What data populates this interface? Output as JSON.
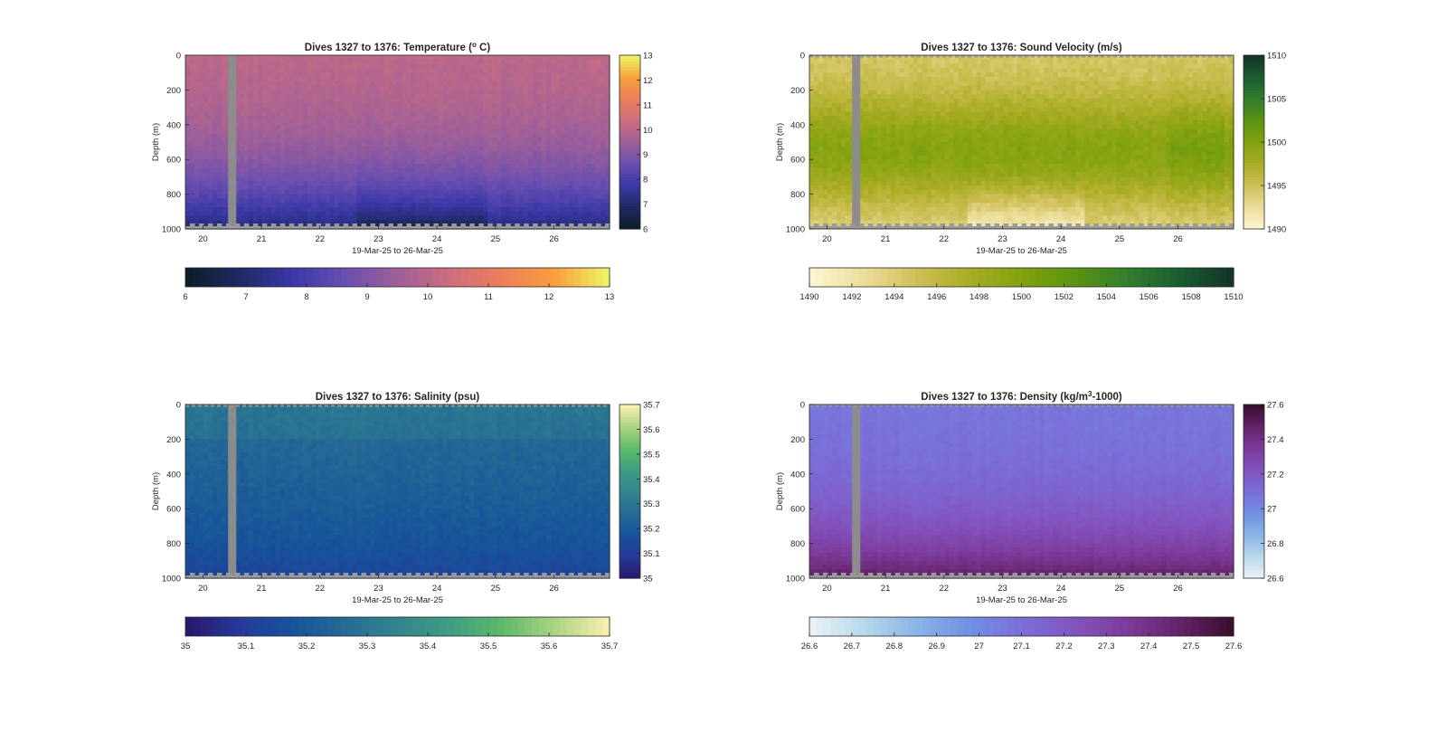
{
  "figure": {
    "background": "#ffffff",
    "gap_color": "#8c8c8c",
    "bottom_gray": "#9a9a9a"
  },
  "chart_data": [
    {
      "type": "heatmap",
      "title_prefix": "Dives 1327 to 1376: Temperature (",
      "title_sup": "o",
      "title_suffix": " C)",
      "xlabel": "19-Mar-25 to 26-Mar-25",
      "ylabel": "Depth (m)",
      "x_ticks": [
        "20",
        "21",
        "22",
        "23",
        "24",
        "25",
        "26"
      ],
      "y_ticks": [
        "0",
        "200",
        "400",
        "600",
        "800",
        "1000"
      ],
      "ylim": [
        0,
        1000
      ],
      "xlim": [
        19.7,
        26.95
      ],
      "gap": [
        20.43,
        20.57
      ],
      "colorbar_ticks": [
        "6",
        "7",
        "8",
        "9",
        "10",
        "11",
        "12",
        "13"
      ],
      "hbar_ticks": [
        "6",
        "7",
        "8",
        "9",
        "10",
        "11",
        "12",
        "13"
      ],
      "clim": [
        6,
        13
      ],
      "colormap": [
        "#0d1d2c",
        "#202a66",
        "#3b38a8",
        "#6a4fb0",
        "#9e5f9a",
        "#cc6e7e",
        "#ec7e5c",
        "#f79e3c",
        "#eef262"
      ],
      "profile": {
        "type": "temperature",
        "surface": 10.1,
        "deep": 6.9
      },
      "dashed_surface": false,
      "bottom_edge": 985
    },
    {
      "type": "heatmap",
      "title_prefix": "Dives 1327 to 1376: Sound Velocity (m/s)",
      "title_sup": "",
      "title_suffix": "",
      "xlabel": "19-Mar-25 to 26-Mar-25",
      "ylabel": "Depth (m)",
      "x_ticks": [
        "20",
        "21",
        "22",
        "23",
        "24",
        "25",
        "26"
      ],
      "y_ticks": [
        "0",
        "200",
        "400",
        "600",
        "800",
        "1000"
      ],
      "ylim": [
        0,
        1000
      ],
      "xlim": [
        19.7,
        26.95
      ],
      "gap": [
        20.43,
        20.57
      ],
      "colorbar_ticks": [
        "1490",
        "1495",
        "1500",
        "1505",
        "1510"
      ],
      "hbar_ticks": [
        "1490",
        "1492",
        "1494",
        "1496",
        "1498",
        "1500",
        "1502",
        "1504",
        "1506",
        "1508",
        "1510"
      ],
      "clim": [
        1490,
        1510
      ],
      "colormap": [
        "#fdf5cf",
        "#eadd98",
        "#cdbf56",
        "#a9ac24",
        "#82a20e",
        "#5c9412",
        "#337f2c",
        "#1a5f33",
        "#13362a"
      ],
      "profile": {
        "type": "sound",
        "surface": 1494.2,
        "mid": 1499.5,
        "deep": 1493.0
      },
      "dashed_surface": true,
      "bottom_edge": 985
    },
    {
      "type": "heatmap",
      "title_prefix": "Dives 1327 to 1376: Salinity (psu)",
      "title_sup": "",
      "title_suffix": "",
      "xlabel": "19-Mar-25 to 26-Mar-25",
      "ylabel": "Depth (m)",
      "x_ticks": [
        "20",
        "21",
        "22",
        "23",
        "24",
        "25",
        "26"
      ],
      "y_ticks": [
        "0",
        "200",
        "400",
        "600",
        "800",
        "1000"
      ],
      "ylim": [
        0,
        1000
      ],
      "xlim": [
        19.7,
        26.95
      ],
      "gap": [
        20.43,
        20.57
      ],
      "colorbar_ticks": [
        "35",
        "35.1",
        "35.2",
        "35.3",
        "35.4",
        "35.5",
        "35.6",
        "35.7"
      ],
      "hbar_ticks": [
        "35",
        "35.1",
        "35.2",
        "35.3",
        "35.4",
        "35.5",
        "35.6",
        "35.7"
      ],
      "clim": [
        35,
        35.7
      ],
      "colormap": [
        "#2a1a6e",
        "#263a9a",
        "#16549a",
        "#266b95",
        "#31858e",
        "#3f9d82",
        "#5cb96a",
        "#a9d37f",
        "#f6eeac"
      ],
      "profile": {
        "type": "salinity",
        "surface": 35.27,
        "deep": 35.13
      },
      "dashed_surface": true,
      "bottom_edge": 985
    },
    {
      "type": "heatmap",
      "title_prefix": "Dives 1327 to 1376: Density (kg/m",
      "title_sup": "3",
      "title_suffix": "-1000)",
      "xlabel": "19-Mar-25 to 26-Mar-25",
      "ylabel": "Depth (m)",
      "x_ticks": [
        "20",
        "21",
        "22",
        "23",
        "24",
        "25",
        "26"
      ],
      "y_ticks": [
        "0",
        "200",
        "400",
        "600",
        "800",
        "1000"
      ],
      "ylim": [
        0,
        1000
      ],
      "xlim": [
        19.7,
        26.95
      ],
      "gap": [
        20.43,
        20.57
      ],
      "colorbar_ticks": [
        "26.6",
        "26.8",
        "27",
        "27.2",
        "27.4",
        "27.6"
      ],
      "hbar_ticks": [
        "26.6",
        "26.7",
        "26.8",
        "26.9",
        "27",
        "27.1",
        "27.2",
        "27.3",
        "27.4",
        "27.5",
        "27.6"
      ],
      "clim": [
        26.6,
        27.6
      ],
      "colormap": [
        "#e8f2f4",
        "#b6d7ea",
        "#88b4e6",
        "#7190e4",
        "#7b6ed8",
        "#8354bf",
        "#7e3c9c",
        "#66246d",
        "#3b0f2e"
      ],
      "profile": {
        "type": "density",
        "surface": 27.07,
        "deep": 27.47
      },
      "dashed_surface": true,
      "bottom_edge": 985
    }
  ]
}
